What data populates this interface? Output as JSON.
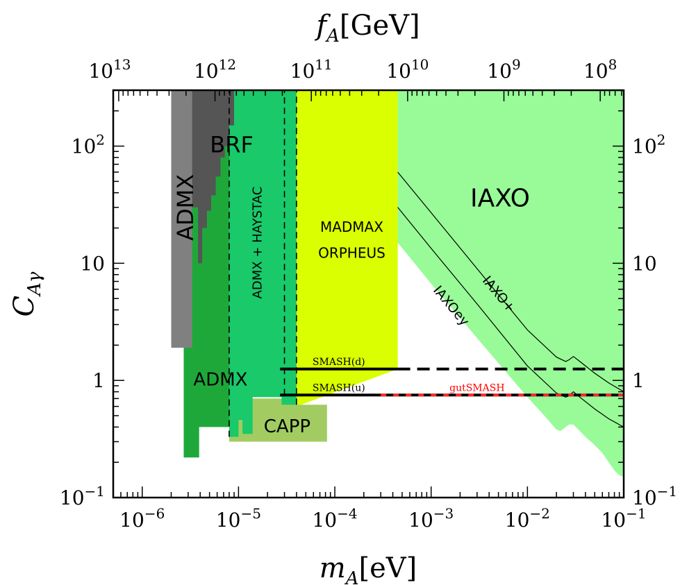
{
  "chart_data": {
    "type": "area",
    "xscale": "log",
    "yscale": "log",
    "xlim": [
      5e-07,
      0.1
    ],
    "ylim": [
      0.1,
      300
    ],
    "xlabel": {
      "italic": "m",
      "sub": "A",
      "unit": "[eV]"
    },
    "ylabel": {
      "italic": "C",
      "sub": "Aγ"
    },
    "top_xlabel": {
      "italic": "f",
      "sub": "A",
      "unit": "[GeV]"
    },
    "x_ticks": [
      {
        "value": 1e-06,
        "base": "10",
        "exp": "−6"
      },
      {
        "value": 1e-05,
        "base": "10",
        "exp": "−5"
      },
      {
        "value": 0.0001,
        "base": "10",
        "exp": "−4"
      },
      {
        "value": 0.001,
        "base": "10",
        "exp": "−3"
      },
      {
        "value": 0.01,
        "base": "10",
        "exp": "−2"
      },
      {
        "value": 0.1,
        "base": "10",
        "exp": "−1"
      }
    ],
    "y_ticks": [
      {
        "value": 0.1,
        "base": "10",
        "exp": "−1"
      },
      {
        "value": 1,
        "base": "1",
        "exp": ""
      },
      {
        "value": 10,
        "base": "10",
        "exp": ""
      },
      {
        "value": 100,
        "base": "10",
        "exp": "2"
      }
    ],
    "top_ticks": [
      {
        "m": 4.6e-07,
        "base": "10",
        "exp": "13"
      },
      {
        "m": 5.7e-06,
        "base": "10",
        "exp": "12"
      },
      {
        "m": 5.7e-05,
        "base": "10",
        "exp": "11"
      },
      {
        "m": 0.00057,
        "base": "10",
        "exp": "10"
      },
      {
        "m": 0.0057,
        "base": "10",
        "exp": "9"
      },
      {
        "m": 0.057,
        "base": "10",
        "exp": "8"
      }
    ],
    "regions": [
      {
        "name": "IAXO",
        "color": "#98fb98",
        "points": [
          [
            0.00045,
            300
          ],
          [
            0.1,
            300
          ],
          [
            0.1,
            0.15
          ],
          [
            0.09,
            0.155
          ],
          [
            0.08,
            0.17
          ],
          [
            0.07,
            0.2
          ],
          [
            0.06,
            0.24
          ],
          [
            0.05,
            0.28
          ],
          [
            0.04,
            0.33
          ],
          [
            0.035,
            0.37
          ],
          [
            0.03,
            0.42
          ],
          [
            0.027,
            0.42
          ],
          [
            0.025,
            0.4
          ],
          [
            0.022,
            0.37
          ],
          [
            0.02,
            0.38
          ],
          [
            0.015,
            0.5
          ],
          [
            0.01,
            0.72
          ],
          [
            0.003,
            2.3
          ],
          [
            0.001,
            6.7
          ],
          [
            0.00045,
            15
          ]
        ]
      },
      {
        "name": "MADMAX ORPHEUS",
        "color": "#d9ff00",
        "points": [
          [
            4e-05,
            300
          ],
          [
            0.00045,
            300
          ],
          [
            0.00045,
            1.25
          ],
          [
            4e-05,
            0.6
          ]
        ]
      },
      {
        "name": "CAPP",
        "color": "#a2cc62",
        "points": [
          [
            8e-06,
            0.3
          ],
          [
            8.3e-05,
            0.3
          ],
          [
            8.3e-05,
            0.62
          ],
          [
            4e-05,
            0.62
          ],
          [
            4e-05,
            0.7
          ],
          [
            1.2e-05,
            0.7
          ],
          [
            1.2e-05,
            0.5
          ],
          [
            8e-06,
            0.5
          ]
        ]
      },
      {
        "name": "ADMX + HAYSTAC",
        "color": "#19c96a",
        "points": [
          [
            8e-06,
            300
          ],
          [
            4e-05,
            300
          ],
          [
            4e-05,
            0.62
          ],
          [
            2.8e-05,
            0.62
          ],
          [
            2.8e-05,
            0.72
          ],
          [
            1.4e-05,
            0.72
          ],
          [
            1.4e-05,
            0.35
          ],
          [
            1.1e-05,
            0.35
          ],
          [
            1.1e-05,
            0.46
          ],
          [
            1e-05,
            0.46
          ],
          [
            1e-05,
            0.33
          ],
          [
            8e-06,
            0.33
          ]
        ]
      },
      {
        "name": "ADMX",
        "color": "#1fa83a",
        "points": [
          [
            2.7e-06,
            300
          ],
          [
            8e-06,
            300
          ],
          [
            8e-06,
            0.4
          ],
          [
            3.9e-06,
            0.4
          ],
          [
            3.9e-06,
            0.22
          ],
          [
            2.7e-06,
            0.22
          ]
        ]
      },
      {
        "name": "BRF",
        "color": "#555555",
        "points": [
          [
            3.3e-06,
            300
          ],
          [
            9e-06,
            300
          ],
          [
            9e-06,
            150
          ],
          [
            8e-06,
            150
          ],
          [
            8e-06,
            100
          ],
          [
            7.2e-06,
            100
          ],
          [
            7.2e-06,
            80
          ],
          [
            6.5e-06,
            80
          ],
          [
            6.5e-06,
            55
          ],
          [
            5.8e-06,
            55
          ],
          [
            5.8e-06,
            38
          ],
          [
            5.2e-06,
            38
          ],
          [
            5.2e-06,
            28
          ],
          [
            4.7e-06,
            28
          ],
          [
            4.7e-06,
            20
          ],
          [
            4.2e-06,
            20
          ],
          [
            4.2e-06,
            10
          ],
          [
            3.8e-06,
            10
          ],
          [
            3.8e-06,
            30
          ],
          [
            3.3e-06,
            30
          ]
        ]
      },
      {
        "name": "ADMX",
        "color": "#808080",
        "points": [
          [
            2e-06,
            300
          ],
          [
            3.3e-06,
            300
          ],
          [
            3.3e-06,
            1.9
          ],
          [
            2e-06,
            1.9
          ]
        ]
      }
    ],
    "region_labels": [
      {
        "text": "IAXO",
        "x": 0.0052,
        "y": 35,
        "size": 36,
        "rotate": 0,
        "color": "#000000"
      },
      {
        "text": "MADMAX",
        "x": 0.00015,
        "y": 20,
        "size": 20,
        "rotate": 0,
        "color": "#000000"
      },
      {
        "text": "ORPHEUS",
        "x": 0.00015,
        "y": 12,
        "size": 20,
        "rotate": 0,
        "color": "#000000"
      },
      {
        "text": "ADMX",
        "x": 2.9e-06,
        "y": 30,
        "size": 32,
        "rotate": -90,
        "color": "#ffffff"
      },
      {
        "text": "BRF",
        "x": 8.5e-06,
        "y": 100,
        "size": 32,
        "rotate": 0,
        "color": "#ffffff"
      },
      {
        "text": "ADMX + HAYSTAC",
        "x": 1.6e-05,
        "y": 15,
        "size": 18,
        "rotate": -90,
        "color": "#000000"
      },
      {
        "text": "ADMX",
        "x": 6.5e-06,
        "y": 1,
        "size": 26,
        "rotate": 0,
        "color": "#000000"
      },
      {
        "text": "CAPP",
        "x": 3.2e-05,
        "y": 0.4,
        "size": 26,
        "rotate": 0,
        "color": "#000000"
      },
      {
        "text": "IAXOey",
        "x": 0.0016,
        "y": 4.3,
        "size": 19,
        "rotate": 50,
        "color": "#000000"
      },
      {
        "text": "IAXO+",
        "x": 0.005,
        "y": 5.4,
        "size": 19,
        "rotate": 50,
        "color": "#000000"
      }
    ],
    "series": [
      {
        "name": "IAXOey",
        "color": "#000000",
        "dash": "none",
        "points": [
          [
            0.00045,
            30
          ],
          [
            0.001,
            13.4
          ],
          [
            0.003,
            4.5
          ],
          [
            0.01,
            1.33
          ],
          [
            0.02,
            0.78
          ],
          [
            0.025,
            0.72
          ],
          [
            0.027,
            0.74
          ],
          [
            0.03,
            0.8
          ],
          [
            0.035,
            0.72
          ],
          [
            0.05,
            0.57
          ],
          [
            0.07,
            0.47
          ],
          [
            0.1,
            0.4
          ]
        ]
      },
      {
        "name": "IAXO+",
        "color": "#000000",
        "dash": "none",
        "points": [
          [
            0.00045,
            60
          ],
          [
            0.001,
            27
          ],
          [
            0.003,
            9
          ],
          [
            0.01,
            2.7
          ],
          [
            0.02,
            1.58
          ],
          [
            0.025,
            1.45
          ],
          [
            0.027,
            1.5
          ],
          [
            0.03,
            1.6
          ],
          [
            0.035,
            1.45
          ],
          [
            0.05,
            1.15
          ],
          [
            0.07,
            0.95
          ],
          [
            0.1,
            0.8
          ]
        ]
      },
      {
        "name": "SMASH(d)",
        "color": "#000000",
        "dash": "none",
        "width": 4,
        "points": [
          [
            2.7e-05,
            1.25
          ],
          [
            0.00045,
            1.25
          ]
        ]
      },
      {
        "name": "SMASH(d)",
        "color": "#000000",
        "dash": "18 10",
        "width": 4,
        "points": [
          [
            0.00045,
            1.25
          ],
          [
            0.1,
            1.25
          ]
        ]
      },
      {
        "name": "SMASH(u)",
        "color": "#000000",
        "dash": "none",
        "width": 4,
        "points": [
          [
            2.7e-05,
            0.75
          ],
          [
            0.1,
            0.75
          ]
        ]
      },
      {
        "name": "gutSMASH",
        "color": "#ff2a2a",
        "dash": "8 10",
        "width": 4,
        "points": [
          [
            0.0003,
            0.75
          ],
          [
            0.1,
            0.75
          ]
        ]
      }
    ],
    "line_labels": [
      {
        "text": "SMASH(d)",
        "x": 0.00011,
        "y": 1.35,
        "color": "#000000"
      },
      {
        "text": "SMASH(u)",
        "x": 0.00011,
        "y": 0.81,
        "color": "#000000"
      },
      {
        "text": "gutSMASH",
        "x": 0.003,
        "y": 0.81,
        "color": "#ff0000"
      }
    ],
    "grid": false,
    "legend": "none"
  }
}
